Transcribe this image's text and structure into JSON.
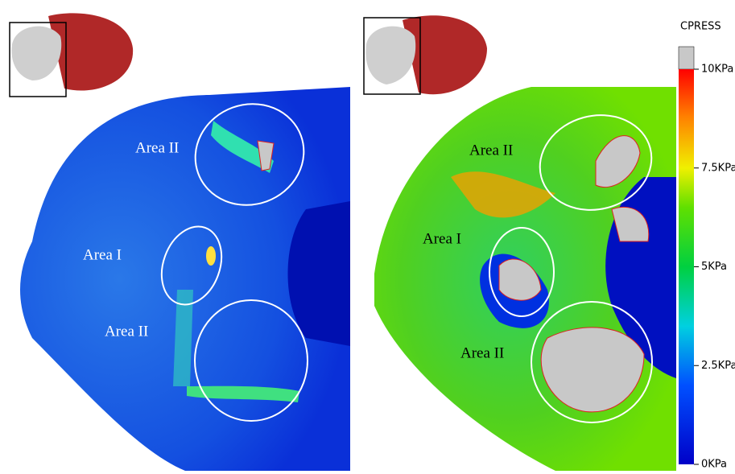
{
  "left_panel": {
    "labels": [
      "Area II",
      "Area I",
      "Area II"
    ]
  },
  "right_panel": {
    "labels": [
      "Area II",
      "Area I",
      "Area II"
    ]
  },
  "colorbar": {
    "title": "CPRESS",
    "ticks": [
      {
        "value": 10,
        "label": "10KPa"
      },
      {
        "value": 7.5,
        "label": "7.5KPa"
      },
      {
        "value": 5,
        "label": "5KPa"
      },
      {
        "value": 2.5,
        "label": "2.5KPa"
      },
      {
        "value": 0,
        "label": "0KPa"
      }
    ]
  }
}
